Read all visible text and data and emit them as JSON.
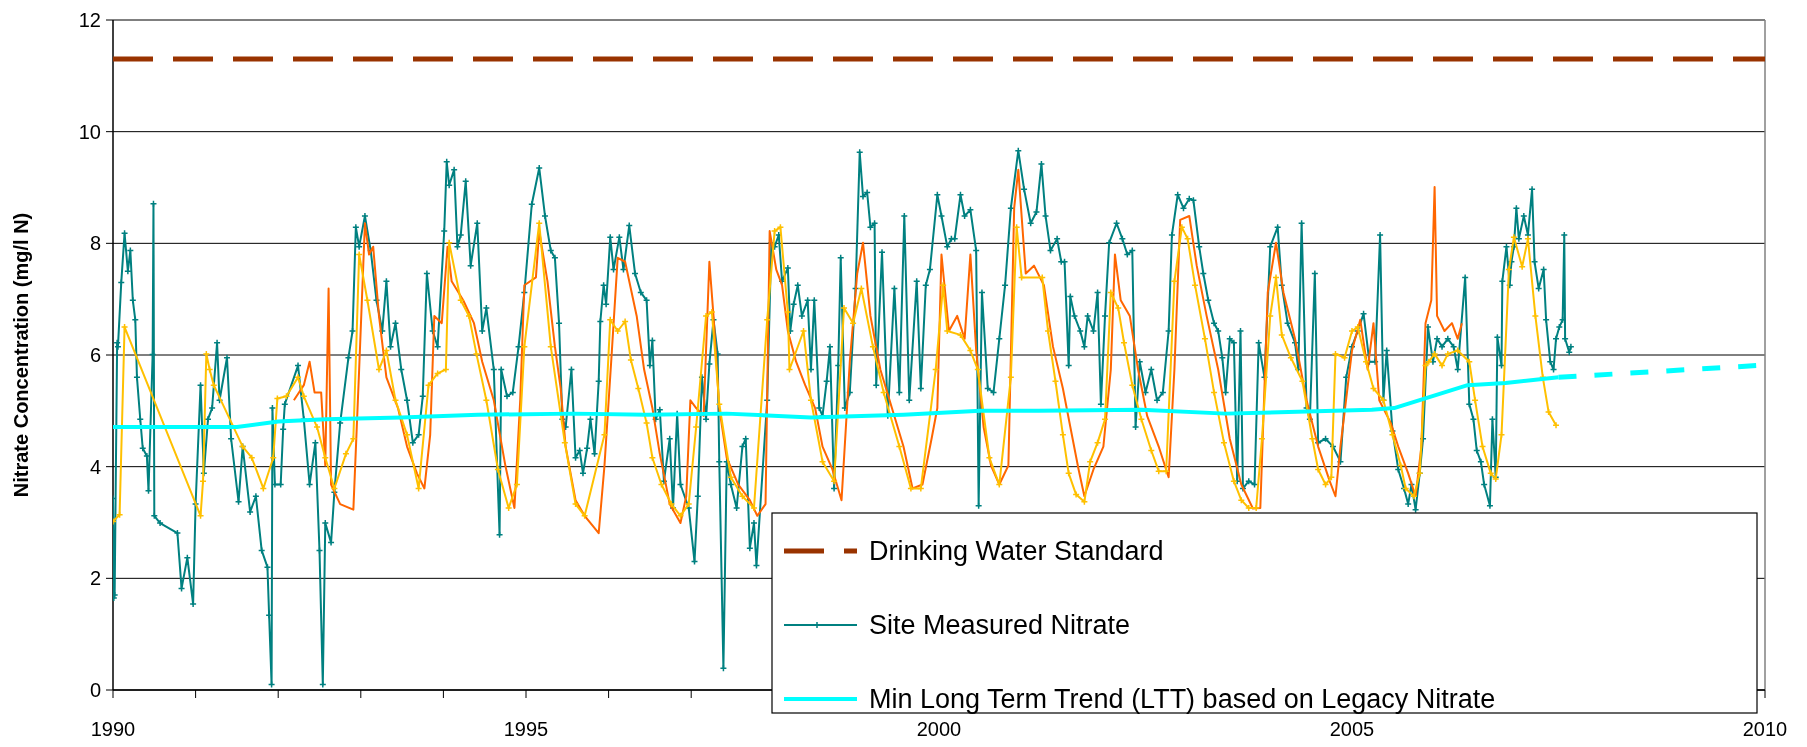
{
  "chart_data": {
    "type": "line",
    "ylabel": "Nitrate Concentration (mg/l N)",
    "xlim": [
      1990,
      2010
    ],
    "ylim": [
      0,
      12
    ],
    "xticks": [
      1990,
      {
        "value": 1991,
        "label": null
      },
      {
        "value": 1992,
        "label": null
      },
      {
        "value": 1993,
        "label": null
      },
      {
        "value": 1994,
        "label": null
      },
      1995,
      {
        "value": 1996,
        "label": null
      },
      {
        "value": 1997,
        "label": null
      },
      {
        "value": 1998,
        "label": null
      },
      {
        "value": 1999,
        "label": null
      },
      2000,
      {
        "value": 2001,
        "label": null
      },
      {
        "value": 2002,
        "label": null
      },
      {
        "value": 2003,
        "label": null
      },
      {
        "value": 2004,
        "label": null
      },
      2005,
      {
        "value": 2006,
        "label": null
      },
      {
        "value": 2007,
        "label": null
      },
      {
        "value": 2008,
        "label": null
      },
      {
        "value": 2009,
        "label": null
      },
      2010
    ],
    "yticks": [
      0,
      2,
      4,
      6,
      8,
      10,
      12
    ],
    "grid": "y",
    "legend": "bottom right",
    "series": [
      {
        "name": "Drinking Water Standard",
        "color": "#993300",
        "line_style": "dashed",
        "marker": "none",
        "x": [
          1990,
          2010
        ],
        "values": [
          11.3,
          11.3
        ]
      },
      {
        "name": "Site Measured Nitrate",
        "color": "#008080",
        "line_style": "solid",
        "marker": "cross",
        "x": [
          1990.0,
          1990.01,
          1990.02,
          1990.05,
          1990.06,
          1990.1,
          1990.14,
          1990.18,
          1990.21,
          1990.24,
          1990.27,
          1990.29,
          1990.33,
          1990.36,
          1990.41,
          1990.43,
          1990.48,
          1990.49,
          1990.5,
          1990.57,
          1990.78,
          1990.83,
          1990.9,
          1990.97,
          1991.0,
          1991.06,
          1991.1,
          1991.15,
          1991.2,
          1991.26,
          1991.29,
          1991.38,
          1991.43,
          1991.52,
          1991.57,
          1991.66,
          1991.73,
          1991.8,
          1991.87,
          1991.89,
          1991.92,
          1991.93,
          1991.96,
          1992.03,
          1992.06,
          1992.08,
          1992.24,
          1992.31,
          1992.38,
          1992.45,
          1992.5,
          1992.54,
          1992.57,
          1992.64,
          1992.68,
          1992.75,
          1992.85,
          1992.9,
          1992.94,
          1992.98,
          1993.05,
          1993.12,
          1993.19,
          1993.26,
          1993.31,
          1993.36,
          1993.42,
          1993.49,
          1993.56,
          1993.63,
          1993.7,
          1993.75,
          1993.8,
          1993.87,
          1993.93,
          1994.01,
          1994.04,
          1994.07,
          1994.13,
          1994.17,
          1994.21,
          1994.27,
          1994.33,
          1994.41,
          1994.47,
          1994.52,
          1994.61,
          1994.68,
          1994.7,
          1994.77,
          1994.84,
          1994.91,
          1994.98,
          1995.07,
          1995.16,
          1995.23,
          1995.3,
          1995.35,
          1995.4,
          1995.44,
          1995.48,
          1995.55,
          1995.6,
          1995.65,
          1995.69,
          1995.74,
          1995.78,
          1995.83,
          1995.88,
          1995.9,
          1995.94,
          1995.97,
          1996.02,
          1996.06,
          1996.13,
          1996.18,
          1996.25,
          1996.32,
          1996.39,
          1996.46,
          1996.5,
          1996.53,
          1996.57,
          1996.62,
          1996.67,
          1996.74,
          1996.78,
          1996.83,
          1996.87,
          1996.97,
          1997.04,
          1997.08,
          1997.13,
          1997.18,
          1997.22,
          1997.27,
          1997.32,
          1997.34,
          1997.39,
          1997.43,
          1997.48,
          1997.55,
          1997.62,
          1997.66,
          1997.71,
          1997.76,
          1997.79,
          1997.92,
          1997.97,
          1998.01,
          1998.06,
          1998.1,
          1998.17,
          1998.2,
          1998.24,
          1998.29,
          1998.34,
          1998.41,
          1998.45,
          1998.49,
          1998.55,
          1998.59,
          1998.64,
          1998.68,
          1998.73,
          1998.78,
          1998.81,
          1998.86,
          1998.92,
          1998.99,
          1999.04,
          1999.08,
          1999.13,
          1999.17,
          1999.22,
          1999.24,
          1999.31,
          1999.38,
          1999.46,
          1999.52,
          1999.58,
          1999.64,
          1999.73,
          1999.78,
          1999.84,
          1999.89,
          1999.98,
          2000.03,
          2000.1,
          2000.15,
          2000.19,
          2000.26,
          2000.31,
          2000.38,
          2000.45,
          2000.48,
          2000.52,
          2000.59,
          2000.66,
          2000.73,
          2000.8,
          2000.87,
          2000.96,
          2001.03,
          2001.11,
          2001.18,
          2001.24,
          2001.29,
          2001.35,
          2001.43,
          2001.48,
          2001.52,
          2001.57,
          2001.59,
          2001.64,
          2001.71,
          2001.76,
          2001.8,
          2001.87,
          2001.92,
          2001.96,
          2002.01,
          2002.06,
          2002.15,
          2002.22,
          2002.28,
          2002.34,
          2002.38,
          2002.43,
          2002.5,
          2002.57,
          2002.64,
          2002.71,
          2002.78,
          2002.82,
          2002.89,
          2002.96,
          2003.03,
          2003.08,
          2003.15,
          2003.2,
          2003.26,
          2003.33,
          2003.38,
          2003.43,
          2003.47,
          2003.52,
          2003.57,
          2003.61,
          2003.65,
          2003.68,
          2003.75,
          2003.82,
          2003.87,
          2003.94,
          2004.01,
          2004.1,
          2004.15,
          2004.22,
          2004.31,
          2004.35,
          2004.39,
          2004.45,
          2004.49,
          2004.55,
          2004.59,
          2004.68,
          2004.77,
          2004.86,
          2004.93,
          2005.0,
          2005.07,
          2005.14,
          2005.21,
          2005.28,
          2005.34,
          2005.38,
          2005.42,
          2005.49,
          2005.56,
          2005.63,
          2005.68,
          2005.72,
          2005.77,
          2005.82,
          2005.86,
          2005.92,
          2005.98,
          2006.03,
          2006.09,
          2006.16,
          2006.23,
          2006.28,
          2006.37,
          2006.42,
          2006.47,
          2006.51,
          2006.56,
          2006.6,
          2006.67,
          2006.7,
          2006.74,
          2006.76,
          2006.81,
          2006.82,
          2006.87,
          2006.91,
          2006.93,
          2006.96,
          2006.99,
          2007.02,
          2007.08,
          2007.13,
          2007.18,
          2007.21,
          2007.26,
          2007.32,
          2007.35,
          2007.4,
          2007.44,
          2007.47,
          2007.51,
          2007.55,
          2007.57,
          2007.58,
          2007.63,
          2007.65
        ],
        "values": [
          3.43,
          1.65,
          1.7,
          6.22,
          6.15,
          7.3,
          8.18,
          7.5,
          7.87,
          6.98,
          6.63,
          5.6,
          4.85,
          4.33,
          4.19,
          3.57,
          6.01,
          8.71,
          3.12,
          2.99,
          2.81,
          1.82,
          2.37,
          1.54,
          3.33,
          5.46,
          3.88,
          4.85,
          5.05,
          6.22,
          5.19,
          5.95,
          4.5,
          3.37,
          4.36,
          3.19,
          3.47,
          2.5,
          2.2,
          1.34,
          0.1,
          5.05,
          3.68,
          3.68,
          4.67,
          5.12,
          5.81,
          4.85,
          3.68,
          4.43,
          2.5,
          0.1,
          2.99,
          2.64,
          3.54,
          4.78,
          5.95,
          6.43,
          8.29,
          7.94,
          8.49,
          7.87,
          6.98,
          6.43,
          7.32,
          6.15,
          6.57,
          5.74,
          5.19,
          4.43,
          4.57,
          5.26,
          7.46,
          6.43,
          6.15,
          8.22,
          9.46,
          9.04,
          9.32,
          7.94,
          8.15,
          9.11,
          7.6,
          8.36,
          6.43,
          6.84,
          5.74,
          2.78,
          5.74,
          5.26,
          5.33,
          6.15,
          7.12,
          8.7,
          9.35,
          8.49,
          7.87,
          7.74,
          6.57,
          4.85,
          4.71,
          5.74,
          4.16,
          4.29,
          3.88,
          4.33,
          4.85,
          4.23,
          5.53,
          6.6,
          7.25,
          6.91,
          8.11,
          7.53,
          8.11,
          7.53,
          8.32,
          7.46,
          7.12,
          6.98,
          5.81,
          6.26,
          4.85,
          5.02,
          3.74,
          4.5,
          3.26,
          4.95,
          3.68,
          3.26,
          2.3,
          3.47,
          5.6,
          4.85,
          5.84,
          6.63,
          6.02,
          4.09,
          0.39,
          4.09,
          3.68,
          3.26,
          4.36,
          4.5,
          2.54,
          2.99,
          2.23,
          5.19,
          8.01,
          7.94,
          8.15,
          7.32,
          7.56,
          6.43,
          6.91,
          7.25,
          6.7,
          6.98,
          5.74,
          6.98,
          5.05,
          4.91,
          5.53,
          6.15,
          3.61,
          5.81,
          7.74,
          5.05,
          5.33,
          7.19,
          9.63,
          8.84,
          8.91,
          8.29,
          8.36,
          5.46,
          7.84,
          4.91,
          7.19,
          5.33,
          8.49,
          5.19,
          7.32,
          5.4,
          7.25,
          7.53,
          8.87,
          8.49,
          7.94,
          8.08,
          8.08,
          8.87,
          8.49,
          8.6,
          7.87,
          3.3,
          7.12,
          5.4,
          5.33,
          6.29,
          7.25,
          8.63,
          9.66,
          8.97,
          8.36,
          8.56,
          9.42,
          8.49,
          7.87,
          8.08,
          7.67,
          7.67,
          5.81,
          7.05,
          6.7,
          6.43,
          6.15,
          6.7,
          6.43,
          7.12,
          5.12,
          6.7,
          8.01,
          8.36,
          8.08,
          7.8,
          7.87,
          4.71,
          5.88,
          5.33,
          5.74,
          5.19,
          5.33,
          6.43,
          8.15,
          8.87,
          8.63,
          8.8,
          8.77,
          7.94,
          7.46,
          6.98,
          6.57,
          6.43,
          5.95,
          5.33,
          6.29,
          6.22,
          3.74,
          6.43,
          3.61,
          3.74,
          3.68,
          6.22,
          5.6,
          7.94,
          8.29,
          7.25,
          6.57,
          6.22,
          5.74,
          8.36,
          5.05,
          4.85,
          7.46,
          4.43,
          4.5,
          4.36,
          4.09,
          5.6,
          6.15,
          6.43,
          6.74,
          5.88,
          5.88,
          8.15,
          5.19,
          6.08,
          4.64,
          3.95,
          3.61,
          3.33,
          3.68,
          3.23,
          3.88,
          4.5,
          6.5,
          5.88,
          6.29,
          6.15,
          6.29,
          6.15,
          5.74,
          7.39,
          5.12,
          4.85,
          4.29,
          4.09,
          3.68,
          3.3,
          4.85,
          3.81,
          6.32,
          5.81,
          7.32,
          7.94,
          7.25,
          7.67,
          7.94,
          8.63,
          8.08,
          8.49,
          8.15,
          8.97,
          7.67,
          7.19,
          7.53,
          6.63,
          5.88,
          5.74,
          6.29,
          6.5,
          6.63,
          8.15,
          6.29,
          6.05,
          6.15
        ]
      },
      {
        "color": "#ff6600",
        "line_style": "solid",
        "marker": "none",
        "x": [
          1992.19,
          1992.31,
          1992.38,
          1992.44,
          1992.52,
          1992.57,
          1992.61,
          1992.64,
          1992.75,
          1992.91,
          1992.98,
          1993.05,
          1993.1,
          1993.15,
          1993.22,
          1993.31,
          1993.45,
          1993.56,
          1993.68,
          1993.77,
          1993.84,
          1993.89,
          1993.98,
          1994.05,
          1994.1,
          1994.24,
          1994.37,
          1994.47,
          1994.61,
          1994.75,
          1994.86,
          1994.93,
          1994.98,
          1995.12,
          1995.16,
          1995.26,
          1995.35,
          1995.42,
          1995.48,
          1995.6,
          1995.71,
          1995.88,
          1995.95,
          1996.04,
          1996.11,
          1996.2,
          1996.25,
          1996.34,
          1996.43,
          1996.53,
          1996.62,
          1996.74,
          1996.87,
          1996.94,
          1996.99,
          1997.06,
          1997.15,
          1997.22,
          1997.27,
          1997.34,
          1997.43,
          1997.57,
          1997.71,
          1997.8,
          1997.9,
          1997.95,
          1998.03,
          1998.1,
          1998.17,
          1998.27,
          1998.38,
          1998.5,
          1998.59,
          1998.71,
          1998.82,
          1998.92,
          1999.01,
          1999.08,
          1999.17,
          1999.29,
          1999.43,
          1999.57,
          1999.68,
          1999.8,
          1999.91,
          1999.98,
          2000.03,
          2000.12,
          2000.22,
          2000.31,
          2000.38,
          2000.45,
          2000.54,
          2000.63,
          2000.73,
          2000.84,
          2000.91,
          2000.96,
          2001.05,
          2001.15,
          2001.27,
          2001.38,
          2001.5,
          2001.59,
          2001.69,
          2001.76,
          2001.87,
          2001.99,
          2002.08,
          2002.13,
          2002.2,
          2002.31,
          2002.41,
          2002.52,
          2002.66,
          2002.78,
          2002.85,
          2002.92,
          2003.03,
          2003.12,
          2003.24,
          2003.38,
          2003.52,
          2003.66,
          2003.8,
          2003.89,
          2003.98,
          2004.08,
          2004.17,
          2004.31,
          2004.45,
          2004.59,
          2004.73,
          2004.8,
          2004.86,
          2005.0,
          2005.1,
          2005.19,
          2005.26,
          2005.33,
          2005.47,
          2005.56,
          2005.68,
          2005.77,
          2005.84,
          2005.89,
          2005.96,
          2006.0,
          2006.03,
          2006.12,
          2006.21,
          2006.28,
          2006.33
        ],
        "values": [
          5.19,
          5.46,
          5.88,
          5.33,
          5.33,
          4.02,
          7.19,
          3.68,
          3.33,
          3.23,
          5.74,
          8.36,
          7.8,
          7.94,
          6.7,
          5.6,
          5.05,
          4.36,
          3.88,
          3.61,
          4.57,
          6.7,
          6.57,
          7.94,
          7.32,
          6.98,
          6.57,
          5.88,
          5.19,
          4.02,
          3.26,
          5.19,
          7.25,
          7.39,
          8.22,
          7.32,
          6.15,
          5.4,
          4.36,
          3.4,
          3.12,
          2.81,
          4.02,
          6.08,
          7.74,
          7.67,
          7.32,
          6.7,
          5.74,
          5.05,
          4.23,
          3.33,
          2.99,
          3.47,
          5.19,
          5.05,
          4.91,
          7.67,
          6.7,
          5.05,
          4.16,
          3.68,
          3.4,
          3.12,
          3.33,
          8.22,
          7.53,
          7.25,
          6.43,
          5.88,
          5.46,
          5.05,
          4.36,
          3.95,
          3.4,
          5.88,
          7.46,
          8.01,
          6.7,
          5.74,
          5.05,
          4.36,
          3.61,
          3.68,
          4.5,
          5.05,
          7.8,
          6.43,
          6.7,
          6.29,
          7.8,
          6.08,
          4.71,
          4.02,
          3.68,
          4.02,
          8.63,
          9.32,
          7.46,
          7.6,
          7.25,
          6.15,
          5.4,
          4.71,
          3.95,
          3.47,
          3.95,
          4.36,
          5.74,
          7.8,
          6.98,
          6.7,
          5.74,
          4.91,
          4.36,
          3.81,
          5.74,
          8.42,
          8.49,
          7.6,
          6.7,
          5.74,
          4.5,
          3.68,
          3.25,
          3.26,
          7.12,
          8.01,
          7.12,
          6.29,
          5.19,
          4.36,
          3.74,
          3.47,
          4.36,
          6.08,
          6.63,
          5.74,
          6.57,
          5.19,
          4.78,
          4.36,
          3.88,
          3.47,
          4.36,
          6.57,
          6.98,
          9.01,
          6.7,
          6.43,
          6.57,
          6.29,
          6.57
        ]
      },
      {
        "color": "#ffc000",
        "line_style": "solid",
        "marker": "cross",
        "x": [
          1990.0,
          1990.08,
          1990.14,
          1991.06,
          1991.09,
          1991.13,
          1991.17,
          1991.22,
          1991.57,
          1991.68,
          1991.82,
          1991.94,
          1991.99,
          1992.1,
          1992.24,
          1992.31,
          1992.47,
          1992.57,
          1992.68,
          1992.82,
          1992.91,
          1992.98,
          1993.08,
          1993.22,
          1993.31,
          1993.42,
          1993.56,
          1993.7,
          1993.82,
          1993.93,
          1994.03,
          1994.07,
          1994.21,
          1994.31,
          1994.4,
          1994.52,
          1994.66,
          1994.79,
          1994.89,
          1994.98,
          1995.16,
          1995.3,
          1995.47,
          1995.6,
          1995.71,
          1995.95,
          1996.02,
          1996.11,
          1996.2,
          1996.27,
          1996.36,
          1996.46,
          1996.53,
          1996.64,
          1996.76,
          1996.87,
          1996.97,
          1997.06,
          1997.18,
          1997.25,
          1997.34,
          1997.48,
          1997.62,
          1997.76,
          1997.92,
          1998.01,
          1998.08,
          1998.17,
          1998.19,
          1998.36,
          1998.45,
          1998.59,
          1998.73,
          1998.85,
          1998.96,
          1999.06,
          1999.2,
          1999.33,
          1999.52,
          1999.66,
          1999.78,
          1999.96,
          2000.05,
          2000.1,
          2000.26,
          2000.38,
          2000.47,
          2000.61,
          2000.73,
          2000.87,
          2000.94,
          2001.0,
          2001.25,
          2001.32,
          2001.41,
          2001.5,
          2001.57,
          2001.66,
          2001.76,
          2001.83,
          2001.92,
          2002.01,
          2002.08,
          2002.17,
          2002.24,
          2002.34,
          2002.45,
          2002.57,
          2002.66,
          2002.75,
          2002.85,
          2002.94,
          2003.01,
          2003.1,
          2003.22,
          2003.33,
          2003.45,
          2003.57,
          2003.66,
          2003.75,
          2003.84,
          2003.91,
          2004.01,
          2004.08,
          2004.15,
          2004.26,
          2004.4,
          2004.52,
          2004.59,
          2004.68,
          2004.75,
          2004.8,
          2004.91,
          2005.0,
          2005.07,
          2005.17,
          2005.26,
          2005.38,
          2005.49,
          2005.59,
          2005.65,
          2005.75,
          2005.82,
          2005.89,
          2005.93,
          2006.0,
          2006.09,
          2006.16,
          2006.28,
          2006.42,
          2006.49,
          2006.58,
          2006.68,
          2006.74,
          2006.81,
          2006.9,
          2006.96,
          2007.06,
          2007.13,
          2007.22,
          2007.31,
          2007.38,
          2007.47
        ],
        "values": [
          3.02,
          3.14,
          6.5,
          3.12,
          3.74,
          6.02,
          5.74,
          5.46,
          4.36,
          4.16,
          3.61,
          4.16,
          5.22,
          5.26,
          5.6,
          5.26,
          4.71,
          4.16,
          3.61,
          4.23,
          4.5,
          7.8,
          6.98,
          5.74,
          6.08,
          5.19,
          4.57,
          3.61,
          5.46,
          5.67,
          5.74,
          8.01,
          6.98,
          6.7,
          6.02,
          5.19,
          3.95,
          3.26,
          3.68,
          6.15,
          8.36,
          6.15,
          4.43,
          3.33,
          3.12,
          4.57,
          6.63,
          6.43,
          6.6,
          5.91,
          5.4,
          4.78,
          4.16,
          3.68,
          3.33,
          3.12,
          3.33,
          4.71,
          6.7,
          6.77,
          5.12,
          3.81,
          3.47,
          3.26,
          6.63,
          8.22,
          8.29,
          6.77,
          5.74,
          6.43,
          5.19,
          4.09,
          3.74,
          6.84,
          6.57,
          7.19,
          6.15,
          5.33,
          4.36,
          3.61,
          3.61,
          5.74,
          7.25,
          6.43,
          6.36,
          6.08,
          5.74,
          4.16,
          3.68,
          5.6,
          8.29,
          7.39,
          7.39,
          6.43,
          5.53,
          4.57,
          3.88,
          3.5,
          3.37,
          4.09,
          4.43,
          4.85,
          7.12,
          6.84,
          6.22,
          5.46,
          4.85,
          4.29,
          3.92,
          3.92,
          7.32,
          8.29,
          8.08,
          7.25,
          6.29,
          5.33,
          4.43,
          3.74,
          3.4,
          3.26,
          3.26,
          4.5,
          6.7,
          7.39,
          6.36,
          5.95,
          5.53,
          4.5,
          3.95,
          3.68,
          3.81,
          6.02,
          5.95,
          6.43,
          6.5,
          5.88,
          5.4,
          5.19,
          4.57,
          4.02,
          3.61,
          3.47,
          3.88,
          5.81,
          5.88,
          6.02,
          5.81,
          6.02,
          6.08,
          5.88,
          5.19,
          4.36,
          3.88,
          3.78,
          4.57,
          7.53,
          8.11,
          7.58,
          8.08,
          6.7,
          5.6,
          4.98,
          4.74
        ]
      },
      {
        "name": "Min Long Term Trend (LTT) based on Legacy Nitrate",
        "color": "#00ffff",
        "line_style": "solid",
        "marker": "none",
        "x": [
          1990,
          1991.5,
          1992.0,
          1992.57,
          1993.49,
          1994.42,
          1995.58,
          1996.46,
          1997.43,
          1998.45,
          1999.57,
          2000.5,
          2001.2,
          2002.45,
          2003.47,
          2005.24,
          2005.51,
          2006.4,
          2006.86,
          2007.5
        ],
        "values": [
          4.71,
          4.71,
          4.81,
          4.85,
          4.88,
          4.93,
          4.95,
          4.93,
          4.95,
          4.88,
          4.93,
          5.0,
          5.0,
          5.02,
          4.95,
          5.02,
          5.05,
          5.46,
          5.5,
          5.6
        ]
      },
      {
        "color": "#00ffff",
        "line_style": "dashed",
        "marker": "none",
        "x": [
          2007.5,
          2010
        ],
        "values": [
          5.6,
          5.82
        ]
      }
    ]
  }
}
